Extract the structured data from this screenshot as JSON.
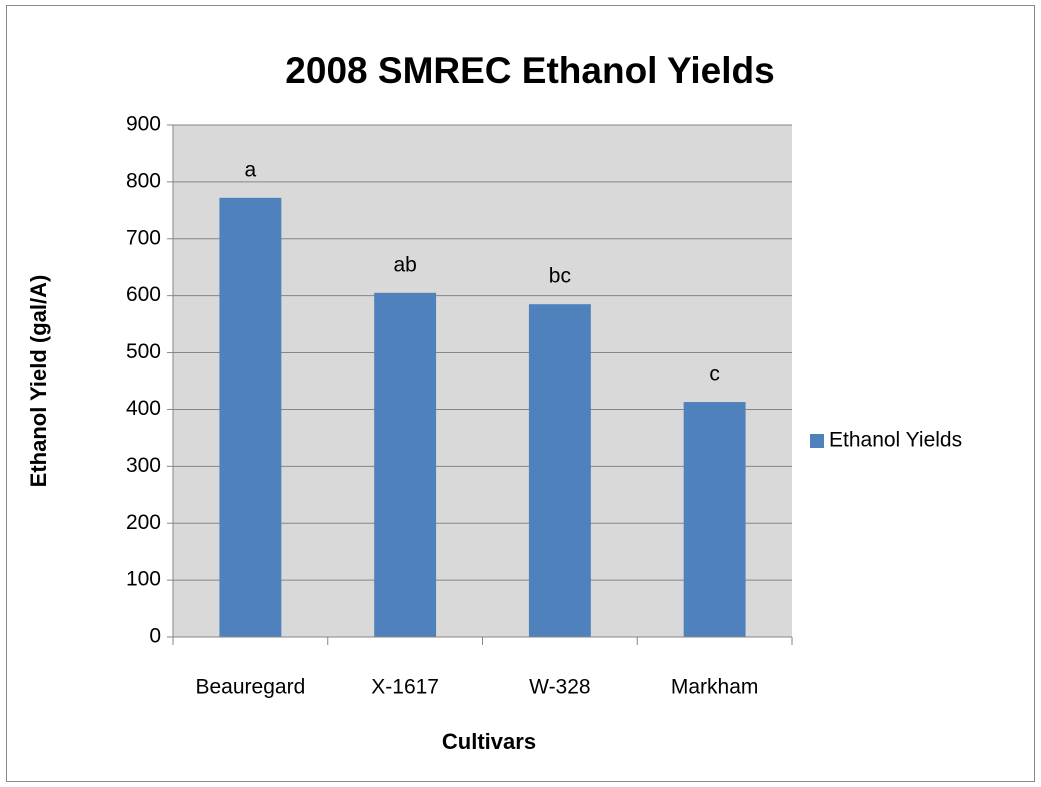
{
  "chart_data": {
    "type": "bar",
    "title": "2008 SMREC Ethanol Yields",
    "x_label": "Cultivars",
    "y_label": "Ethanol Yield (gal/A)",
    "categories": [
      "Beauregard",
      "X-1617",
      "W-328",
      "Markham"
    ],
    "series": [
      {
        "name": "Ethanol Yields",
        "color": "#4f81bd",
        "values": [
          772,
          605,
          585,
          413
        ]
      }
    ],
    "annotations": [
      "a",
      "ab",
      "bc",
      "c"
    ],
    "ylim": [
      0,
      900
    ],
    "yticks": [
      0,
      100,
      200,
      300,
      400,
      500,
      600,
      700,
      800,
      900
    ],
    "grid": true,
    "legend": "right"
  }
}
